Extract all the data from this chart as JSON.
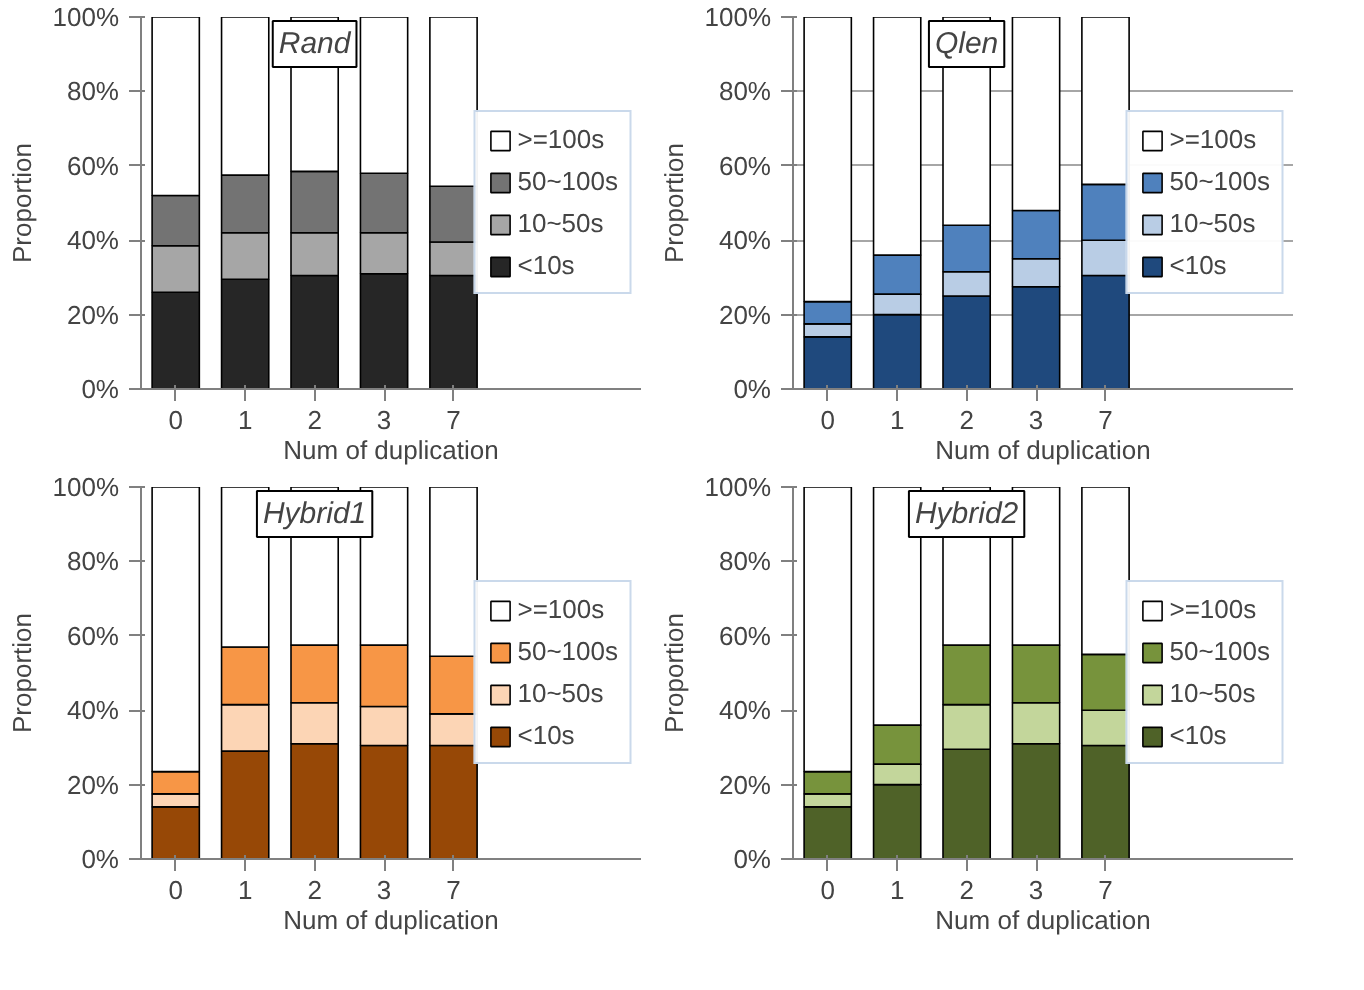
{
  "chart_data": [
    {
      "type": "bar",
      "title": "Rand",
      "xlabel": "Num of duplication",
      "ylabel": "Proportion",
      "categories": [
        "0",
        "1",
        "2",
        "3",
        "7"
      ],
      "stacked": true,
      "ylim": [
        0,
        100
      ],
      "yticks": [
        {
          "value": 0,
          "label": "0%"
        },
        {
          "value": 20,
          "label": "20%"
        },
        {
          "value": 40,
          "label": "40%"
        },
        {
          "value": 60,
          "label": "60%"
        },
        {
          "value": 80,
          "label": "80%"
        },
        {
          "value": 100,
          "label": "100%"
        }
      ],
      "grid": false,
      "legend": "right",
      "series": [
        {
          "name": "<10s",
          "color": "#262626",
          "values": [
            26,
            29.5,
            30.5,
            31,
            30.5
          ]
        },
        {
          "name": "10~50s",
          "color": "#a6a6a6",
          "values": [
            12.5,
            12.5,
            11.5,
            11,
            9
          ]
        },
        {
          "name": "50~100s",
          "color": "#737373",
          "values": [
            13.5,
            15.5,
            16.5,
            16,
            15
          ]
        },
        {
          "name": ">=100s",
          "color": "#ffffff",
          "values": [
            48,
            42.5,
            41.5,
            42,
            45.5
          ]
        }
      ]
    },
    {
      "type": "bar",
      "title": "Qlen",
      "xlabel": "Num of duplication",
      "ylabel": "Proportion",
      "categories": [
        "0",
        "1",
        "2",
        "3",
        "7"
      ],
      "stacked": true,
      "ylim": [
        0,
        100
      ],
      "yticks": [
        {
          "value": 0,
          "label": "0%"
        },
        {
          "value": 20,
          "label": "20%"
        },
        {
          "value": 40,
          "label": "40%"
        },
        {
          "value": 60,
          "label": "60%"
        },
        {
          "value": 80,
          "label": "80%"
        },
        {
          "value": 100,
          "label": "100%"
        }
      ],
      "grid": "y",
      "legend": "right",
      "series": [
        {
          "name": "<10s",
          "color": "#1f497d",
          "values": [
            14,
            20,
            25,
            27.5,
            30.5
          ]
        },
        {
          "name": "10~50s",
          "color": "#b9cde5",
          "values": [
            3.5,
            5.5,
            6.5,
            7.5,
            9.5
          ]
        },
        {
          "name": "50~100s",
          "color": "#4f81bd",
          "values": [
            6,
            10.5,
            12.5,
            13,
            15
          ]
        },
        {
          "name": ">=100s",
          "color": "#ffffff",
          "values": [
            76.5,
            64,
            56,
            52,
            45
          ]
        }
      ]
    },
    {
      "type": "bar",
      "title": "Hybrid1",
      "xlabel": "Num of duplication",
      "ylabel": "Proportion",
      "categories": [
        "0",
        "1",
        "2",
        "3",
        "7"
      ],
      "stacked": true,
      "ylim": [
        0,
        100
      ],
      "yticks": [
        {
          "value": 0,
          "label": "0%"
        },
        {
          "value": 20,
          "label": "20%"
        },
        {
          "value": 40,
          "label": "40%"
        },
        {
          "value": 60,
          "label": "60%"
        },
        {
          "value": 80,
          "label": "80%"
        },
        {
          "value": 100,
          "label": "100%"
        }
      ],
      "grid": false,
      "legend": "right",
      "series": [
        {
          "name": "<10s",
          "color": "#974806",
          "values": [
            14,
            29,
            31,
            30.5,
            30.5
          ]
        },
        {
          "name": "10~50s",
          "color": "#fcd5b5",
          "values": [
            3.5,
            12.5,
            11,
            10.5,
            8.5
          ]
        },
        {
          "name": "50~100s",
          "color": "#f79646",
          "values": [
            6,
            15.5,
            15.5,
            16.5,
            15.5
          ]
        },
        {
          "name": ">=100s",
          "color": "#ffffff",
          "values": [
            76.5,
            43,
            42.5,
            42.5,
            45.5
          ]
        }
      ]
    },
    {
      "type": "bar",
      "title": "Hybrid2",
      "xlabel": "Num of duplication",
      "ylabel": "Proportion",
      "categories": [
        "0",
        "1",
        "2",
        "3",
        "7"
      ],
      "stacked": true,
      "ylim": [
        0,
        100
      ],
      "yticks": [
        {
          "value": 0,
          "label": "0%"
        },
        {
          "value": 20,
          "label": "20%"
        },
        {
          "value": 40,
          "label": "40%"
        },
        {
          "value": 60,
          "label": "60%"
        },
        {
          "value": 80,
          "label": "80%"
        },
        {
          "value": 100,
          "label": "100%"
        }
      ],
      "grid": false,
      "legend": "right",
      "series": [
        {
          "name": "<10s",
          "color": "#4f6228",
          "values": [
            14,
            20,
            29.5,
            31,
            30.5
          ]
        },
        {
          "name": "10~50s",
          "color": "#c3d69b",
          "values": [
            3.5,
            5.5,
            12,
            11,
            9.5
          ]
        },
        {
          "name": "50~100s",
          "color": "#77933c",
          "values": [
            6,
            10.5,
            16,
            15.5,
            15
          ]
        },
        {
          "name": ">=100s",
          "color": "#ffffff",
          "values": [
            76.5,
            64,
            42.5,
            42.5,
            45
          ]
        }
      ]
    }
  ]
}
